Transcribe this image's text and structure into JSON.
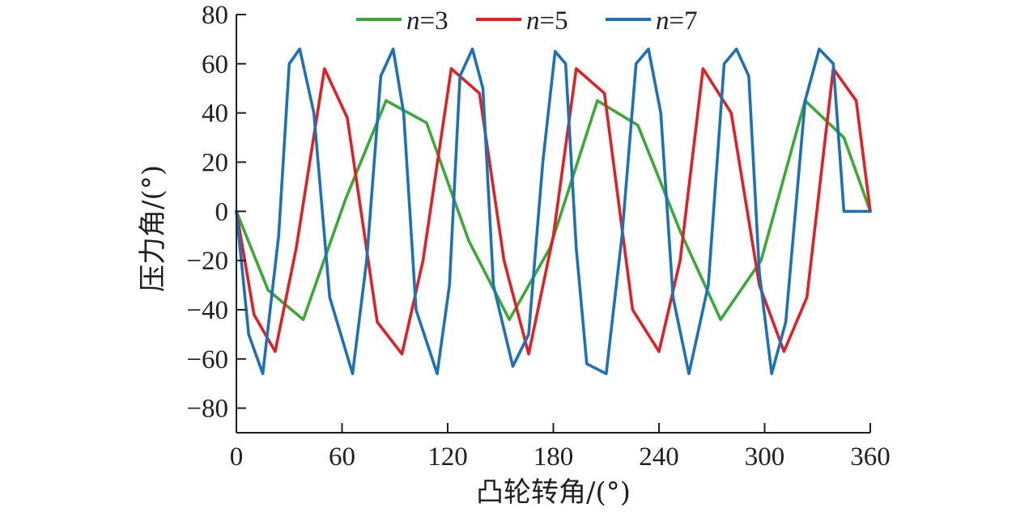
{
  "chart_data": {
    "type": "line",
    "xlabel": "凸轮转角/(°)",
    "ylabel": "压力角/(°)",
    "xlim": [
      0,
      360
    ],
    "ylim": [
      -90,
      80
    ],
    "xticks": [
      "0",
      "60",
      "120",
      "180",
      "240",
      "300",
      "360"
    ],
    "yticks": [
      "80",
      "60",
      "40",
      "20",
      "0",
      "−20",
      "−40",
      "−60",
      "−80"
    ],
    "grid": false,
    "legend_position": "top",
    "series": [
      {
        "name": "n=3",
        "name_italic": "n",
        "name_rest": "=3",
        "color": "#3aaa35",
        "x": [
          0,
          18,
          38,
          62,
          85,
          108,
          132,
          155,
          178,
          205,
          228,
          252,
          275,
          298,
          323,
          345,
          360
        ],
        "y": [
          0,
          -32,
          -44,
          5,
          45,
          36,
          -12,
          -44,
          -15,
          45,
          35,
          -8,
          -44,
          -20,
          45,
          30,
          0
        ]
      },
      {
        "name": "n=5",
        "name_italic": "n",
        "name_rest": "=5",
        "color": "#e31e24",
        "x": [
          0,
          10,
          22,
          34,
          50,
          63,
          80,
          94,
          106,
          122,
          138,
          152,
          166,
          180,
          193,
          209,
          225,
          240,
          252,
          265,
          281,
          297,
          311,
          324,
          339,
          352,
          360
        ],
        "y": [
          0,
          -42,
          -57,
          -15,
          58,
          38,
          -45,
          -58,
          -20,
          58,
          48,
          -20,
          -58,
          -10,
          58,
          48,
          -40,
          -57,
          -20,
          58,
          40,
          -30,
          -57,
          -35,
          58,
          45,
          0
        ]
      },
      {
        "name": "n=7",
        "name_italic": "n",
        "name_rest": "=7",
        "color": "#1d71b8",
        "x": [
          0,
          7,
          15,
          24,
          30,
          36,
          44,
          53,
          66,
          74,
          82,
          89,
          95,
          102,
          114,
          121,
          127,
          134,
          140,
          146,
          157,
          166,
          174,
          181,
          187,
          193,
          199,
          210,
          219,
          227,
          234,
          241,
          248,
          257,
          268,
          277,
          284,
          291,
          297,
          304,
          312,
          323,
          331,
          339,
          345,
          352,
          360
        ],
        "y": [
          0,
          -50,
          -66,
          -10,
          60,
          66,
          40,
          -35,
          -66,
          -20,
          55,
          66,
          40,
          -40,
          -66,
          -30,
          55,
          66,
          50,
          -30,
          -63,
          -50,
          20,
          65,
          60,
          -15,
          -62,
          -66,
          -10,
          60,
          66,
          40,
          -35,
          -66,
          -30,
          60,
          66,
          55,
          -25,
          -66,
          -45,
          45,
          66,
          60,
          0,
          0,
          0
        ]
      }
    ]
  }
}
